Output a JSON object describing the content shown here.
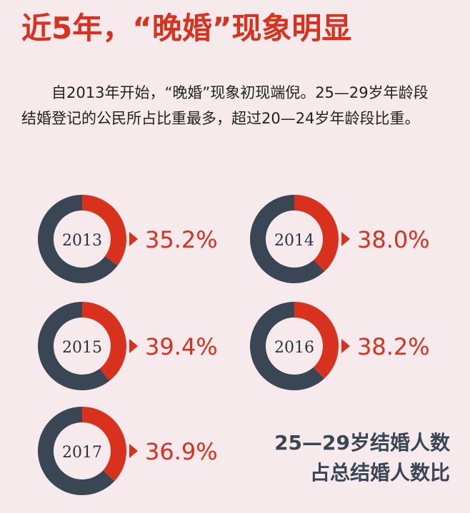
{
  "title": "近5年，“晚婚”现象明显",
  "description": "自2013年开始，“晚婚”现象初现端倪。25—29岁年龄段结婚登记的公民所占比重最多，超过20—24岁年龄段比重。",
  "caption": [
    "25—29岁结婚人数",
    "占总结婚人数比"
  ],
  "chart_data": [
    {
      "type": "donut",
      "label": "2013",
      "values": [
        35.2
      ],
      "value_labels": [
        "35.2%"
      ],
      "color": "#d8321e",
      "rest_color": "#3b4655"
    },
    {
      "type": "donut",
      "label": "2014",
      "values": [
        38.0
      ],
      "value_labels": [
        "38.0%"
      ],
      "color": "#d8321e",
      "rest_color": "#3b4655"
    },
    {
      "type": "donut",
      "label": "2015",
      "values": [
        39.4
      ],
      "value_labels": [
        "39.4%"
      ],
      "color": "#d8321e",
      "rest_color": "#3b4655"
    },
    {
      "type": "donut",
      "label": "2016",
      "values": [
        38.2
      ],
      "value_labels": [
        "38.2%"
      ],
      "color": "#d8321e",
      "rest_color": "#3b4655"
    },
    {
      "type": "donut",
      "label": "2017",
      "values": [
        36.9
      ],
      "value_labels": [
        "36.9%"
      ],
      "color": "#d8321e",
      "rest_color": "#3b4655"
    }
  ]
}
